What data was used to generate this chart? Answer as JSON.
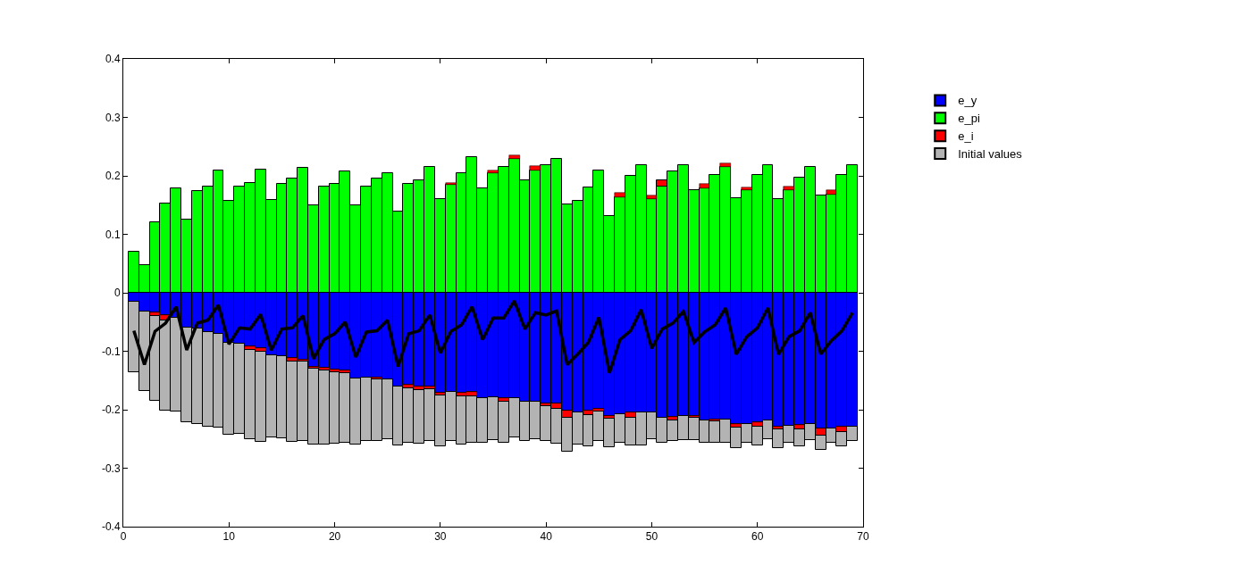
{
  "chart_data": {
    "type": "bar",
    "stacked": true,
    "x": [
      1,
      2,
      3,
      4,
      5,
      6,
      7,
      8,
      9,
      10,
      11,
      12,
      13,
      14,
      15,
      16,
      17,
      18,
      19,
      20,
      21,
      22,
      23,
      24,
      25,
      26,
      27,
      28,
      29,
      30,
      31,
      32,
      33,
      34,
      35,
      36,
      37,
      38,
      39,
      40,
      41,
      42,
      43,
      44,
      45,
      46,
      47,
      48,
      49,
      50,
      51,
      52,
      53,
      54,
      55,
      56,
      57,
      58,
      59,
      60,
      61,
      62,
      63,
      64,
      65,
      66,
      67,
      68,
      69
    ],
    "series": [
      {
        "name": "e_y",
        "color": "#0000ff",
        "values": [
          -0.016,
          -0.032,
          -0.033,
          -0.038,
          -0.043,
          -0.06,
          -0.061,
          -0.067,
          -0.07,
          -0.085,
          -0.087,
          -0.092,
          -0.094,
          -0.107,
          -0.108,
          -0.111,
          -0.114,
          -0.127,
          -0.128,
          -0.132,
          -0.133,
          -0.146,
          -0.145,
          -0.145,
          -0.148,
          -0.16,
          -0.158,
          -0.161,
          -0.161,
          -0.171,
          -0.17,
          -0.171,
          -0.169,
          -0.18,
          -0.179,
          -0.18,
          -0.18,
          -0.187,
          -0.187,
          -0.189,
          -0.189,
          -0.202,
          -0.204,
          -0.202,
          -0.199,
          -0.211,
          -0.207,
          -0.205,
          -0.205,
          -0.204,
          -0.214,
          -0.212,
          -0.211,
          -0.211,
          -0.219,
          -0.217,
          -0.217,
          -0.225,
          -0.224,
          -0.222,
          -0.219,
          -0.229,
          -0.227,
          -0.226,
          -0.224,
          -0.232,
          -0.232,
          -0.229,
          -0.229
        ]
      },
      {
        "name": "e_pi",
        "color": "#00ff00",
        "values": [
          0.071,
          0.048,
          0.12,
          0.152,
          0.178,
          0.125,
          0.174,
          0.182,
          0.209,
          0.158,
          0.181,
          0.188,
          0.211,
          0.159,
          0.187,
          0.195,
          0.214,
          0.149,
          0.182,
          0.187,
          0.208,
          0.149,
          0.182,
          0.195,
          0.205,
          0.139,
          0.187,
          0.192,
          0.215,
          0.16,
          0.185,
          0.204,
          0.232,
          0.179,
          0.204,
          0.215,
          0.229,
          0.192,
          0.209,
          0.218,
          0.229,
          0.151,
          0.157,
          0.18,
          0.209,
          0.132,
          0.164,
          0.2,
          0.219,
          0.161,
          0.182,
          0.208,
          0.219,
          0.176,
          0.179,
          0.201,
          0.215,
          0.162,
          0.176,
          0.201,
          0.219,
          0.161,
          0.175,
          0.197,
          0.216,
          0.166,
          0.168,
          0.202,
          0.219
        ]
      },
      {
        "name": "e_i",
        "color": "#ff0000",
        "values": [
          0,
          0,
          -0.007,
          -0.009,
          0,
          0,
          0,
          0,
          0,
          0,
          0,
          -0.006,
          -0.006,
          null,
          0,
          -0.007,
          -0.003,
          -0.002,
          -0.005,
          -0.004,
          -0.005,
          0,
          0,
          -0.003,
          0,
          0,
          -0.005,
          -0.005,
          -0.004,
          -0.005,
          0.003,
          -0.006,
          -0.008,
          0,
          0.005,
          -0.006,
          0.006,
          0,
          0.008,
          -0.005,
          -0.01,
          -0.012,
          0,
          -0.007,
          -0.004,
          -0.004,
          0.007,
          -0.009,
          0,
          0.006,
          0.011,
          -0.006,
          0,
          -0.003,
          0.008,
          -0.003,
          0.006,
          -0.005,
          0.004,
          -0.007,
          0,
          -0.005,
          0.006,
          -0.008,
          0,
          -0.012,
          0.008,
          -0.009,
          0
        ]
      },
      {
        "name": "Initial values",
        "color": "#b3b3b3",
        "values": [
          -0.12,
          -0.136,
          -0.145,
          -0.155,
          -0.16,
          -0.161,
          -0.163,
          -0.162,
          -0.16,
          -0.158,
          -0.154,
          -0.152,
          -0.155,
          -0.14,
          -0.141,
          -0.137,
          -0.136,
          -0.131,
          -0.127,
          -0.122,
          -0.118,
          -0.114,
          -0.109,
          -0.106,
          -0.102,
          -0.101,
          -0.093,
          -0.092,
          -0.089,
          -0.087,
          -0.084,
          -0.082,
          -0.079,
          -0.076,
          -0.073,
          -0.07,
          -0.068,
          -0.066,
          -0.063,
          -0.06,
          -0.059,
          -0.058,
          -0.055,
          -0.054,
          -0.051,
          -0.049,
          -0.049,
          -0.047,
          -0.056,
          -0.046,
          -0.042,
          -0.036,
          -0.041,
          -0.038,
          -0.037,
          -0.036,
          -0.039,
          -0.035,
          -0.032,
          -0.032,
          -0.031,
          -0.031,
          -0.029,
          -0.028,
          -0.028,
          -0.024,
          -0.024,
          -0.025,
          -0.024
        ]
      },
      {
        "type": "line",
        "color": "#000000",
        "values": [
          -0.065,
          -0.123,
          -0.066,
          -0.052,
          -0.024,
          -0.098,
          -0.052,
          -0.047,
          -0.021,
          -0.088,
          -0.06,
          -0.062,
          -0.037,
          -0.098,
          -0.062,
          -0.06,
          -0.039,
          -0.113,
          -0.08,
          -0.07,
          -0.05,
          -0.11,
          -0.067,
          -0.065,
          -0.047,
          -0.126,
          -0.07,
          -0.065,
          -0.038,
          -0.103,
          -0.066,
          -0.055,
          -0.024,
          -0.08,
          -0.043,
          -0.043,
          -0.014,
          -0.062,
          -0.034,
          -0.038,
          -0.031,
          -0.123,
          -0.105,
          -0.085,
          -0.042,
          -0.137,
          -0.08,
          -0.065,
          -0.029,
          -0.095,
          -0.062,
          -0.052,
          -0.032,
          -0.085,
          -0.067,
          -0.055,
          -0.026,
          -0.105,
          -0.075,
          -0.06,
          -0.026,
          -0.105,
          -0.075,
          -0.065,
          -0.034,
          -0.105,
          -0.082,
          -0.065,
          -0.034
        ]
      }
    ],
    "xlim": [
      0,
      70
    ],
    "xticks": [
      0,
      10,
      20,
      30,
      40,
      50,
      60,
      70
    ],
    "ylim": [
      -0.4,
      0.4
    ],
    "yticks": [
      -0.4,
      -0.3,
      -0.2,
      -0.1,
      0,
      0.1,
      0.2,
      0.3,
      0.4
    ],
    "legend": "right"
  }
}
